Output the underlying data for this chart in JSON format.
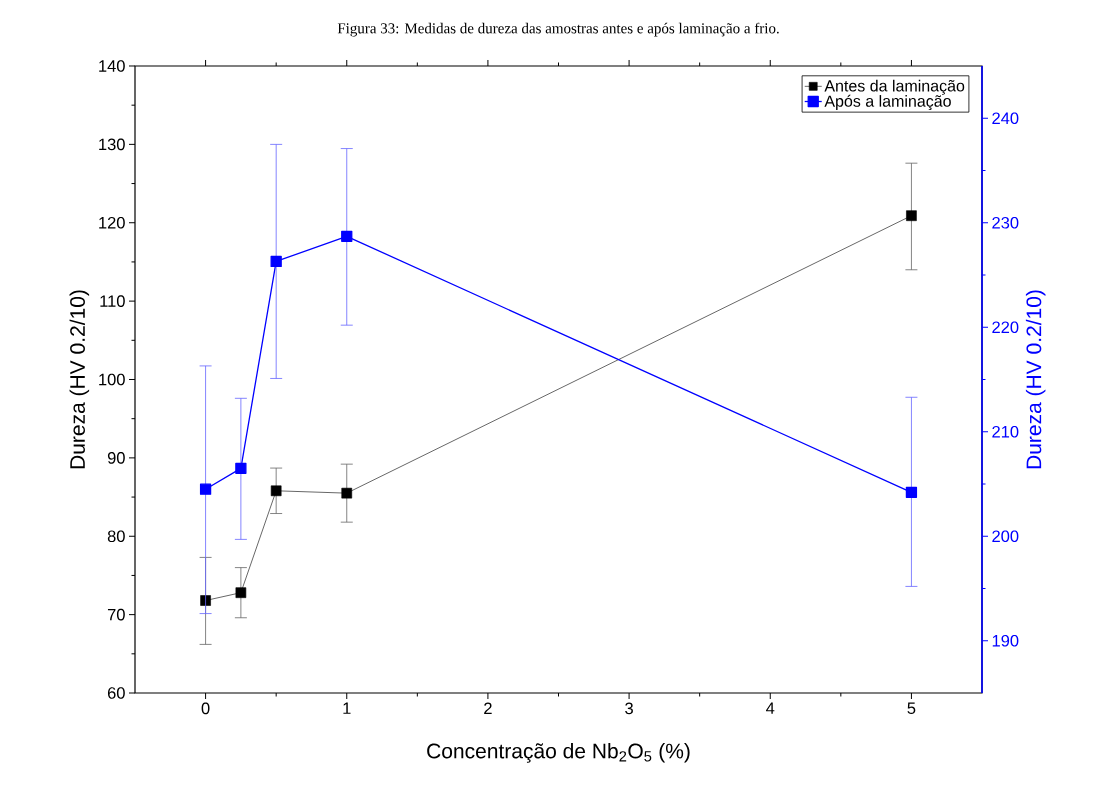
{
  "chart_data": {
    "type": "line",
    "title": "Figura 33: Medidas de dureza das amostras antes e após laminação a frio.",
    "xlabel": "Concentração de Nb$_{2}$O$_{5}$ (%)",
    "ylabel": "Dureza (HV 0.2/10)",
    "y2label": "Dureza (HV 0.2/10)",
    "x": [
      0,
      0.25,
      0.5,
      1,
      5
    ],
    "xlim": [
      -0.5,
      5.5
    ],
    "xticks": [
      0,
      1,
      2,
      3,
      4,
      5
    ],
    "ylim": [
      60,
      140
    ],
    "yticks": [
      60,
      70,
      80,
      90,
      100,
      110,
      120,
      130,
      140
    ],
    "y2lim": [
      185,
      245
    ],
    "y2ticks": [
      190,
      200,
      210,
      220,
      230,
      240
    ],
    "marker": "square",
    "line_style": "solid",
    "legend": "top right",
    "series": [
      {
        "name": "Antes da laminação",
        "color": "#000000",
        "values": [
          71.8,
          72.8,
          85.8,
          85.5,
          120.9
        ],
        "errors": [
          [
            66.2,
            77.3
          ],
          [
            69.6,
            76.0
          ],
          [
            82.9,
            88.7
          ],
          [
            81.8,
            89.2
          ],
          [
            114.0,
            127.6
          ]
        ]
      },
      {
        "name": "Após a laminação",
        "color": "#0000ff",
        "axis": "y2",
        "values": [
          204.5,
          206.5,
          226.3,
          228.7,
          204.2
        ],
        "errors": [
          [
            192.6,
            216.3
          ],
          [
            199.7,
            213.2
          ],
          [
            215.1,
            237.5
          ],
          [
            220.2,
            237.1
          ],
          [
            195.2,
            213.3
          ]
        ]
      }
    ]
  }
}
